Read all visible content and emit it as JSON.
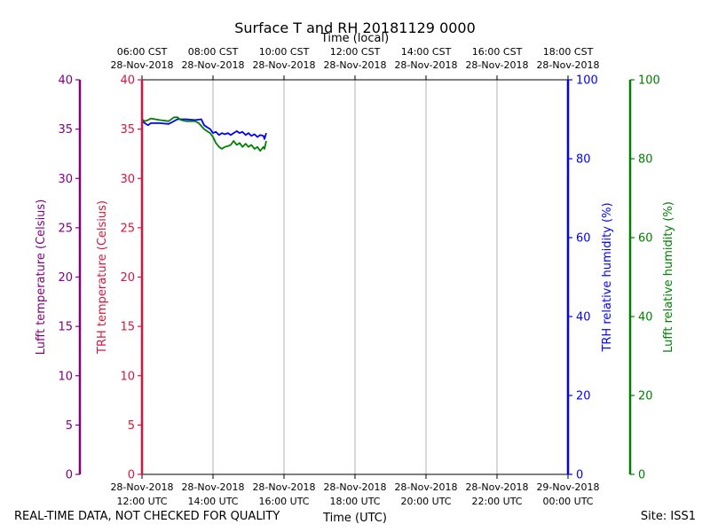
{
  "chart_data": {
    "type": "line",
    "title": "Surface T and RH 20181129 0000",
    "x_bottom": {
      "label": "Time (UTC)",
      "ticks": [
        {
          "date": "28-Nov-2018",
          "time": "12:00 UTC"
        },
        {
          "date": "28-Nov-2018",
          "time": "14:00 UTC"
        },
        {
          "date": "28-Nov-2018",
          "time": "16:00 UTC"
        },
        {
          "date": "28-Nov-2018",
          "time": "18:00 UTC"
        },
        {
          "date": "28-Nov-2018",
          "time": "20:00 UTC"
        },
        {
          "date": "28-Nov-2018",
          "time": "22:00 UTC"
        },
        {
          "date": "29-Nov-2018",
          "time": "00:00 UTC"
        }
      ],
      "range_hours_utc": [
        12,
        24
      ]
    },
    "x_top": {
      "label": "Time (local)",
      "ticks": [
        {
          "time": "06:00 CST",
          "date": "28-Nov-2018"
        },
        {
          "time": "08:00 CST",
          "date": "28-Nov-2018"
        },
        {
          "time": "10:00 CST",
          "date": "28-Nov-2018"
        },
        {
          "time": "12:00 CST",
          "date": "28-Nov-2018"
        },
        {
          "time": "14:00 CST",
          "date": "28-Nov-2018"
        },
        {
          "time": "16:00 CST",
          "date": "28-Nov-2018"
        },
        {
          "time": "18:00 CST",
          "date": "28-Nov-2018"
        }
      ]
    },
    "grid_x": true,
    "axes": {
      "lufft_temp": {
        "label": "Lufft temperature (Celsius)",
        "range": [
          0,
          40
        ],
        "ticks": [
          "0",
          "5",
          "10",
          "15",
          "20",
          "25",
          "30",
          "35",
          "40"
        ],
        "color": "#800080"
      },
      "trh_temp": {
        "label": "TRH temperature (Celsius)",
        "range": [
          0,
          40
        ],
        "ticks": [
          "0",
          "5",
          "10",
          "15",
          "20",
          "25",
          "30",
          "35",
          "40"
        ],
        "color": "#dc143c"
      },
      "trh_rh": {
        "label": "TRH relative humidity (%)",
        "range": [
          0,
          100
        ],
        "ticks": [
          "0",
          "20",
          "40",
          "60",
          "80",
          "100"
        ],
        "color": "#0000ff"
      },
      "lufft_rh": {
        "label": "Lufft relative humidity (%)",
        "range": [
          0,
          100
        ],
        "ticks": [
          "0",
          "20",
          "40",
          "60",
          "80",
          "100"
        ],
        "color": "#008000"
      }
    },
    "series": [
      {
        "axis": "trh_rh",
        "color": "#0000ff",
        "x_hours_utc": [
          12.0,
          12.08,
          12.17,
          12.25,
          12.5,
          12.75,
          13.0,
          13.25,
          13.5,
          13.67,
          13.75,
          13.83,
          13.92,
          14.0,
          14.08,
          14.17,
          14.25,
          14.33,
          14.42,
          14.5,
          14.58,
          14.67,
          14.75,
          14.83,
          14.92,
          15.0,
          15.08,
          15.17,
          15.25,
          15.33,
          15.42,
          15.45,
          15.5
        ],
        "values": [
          89.5,
          89.0,
          88.5,
          89.0,
          89.0,
          88.8,
          90.0,
          90.0,
          89.8,
          90.0,
          88.5,
          88.0,
          87.5,
          86.5,
          86.8,
          86.0,
          86.5,
          86.2,
          86.5,
          86.0,
          86.5,
          87.0,
          86.5,
          86.8,
          86.0,
          86.5,
          85.8,
          86.2,
          85.5,
          86.0,
          85.8,
          85.0,
          86.5
        ]
      },
      {
        "axis": "lufft_rh",
        "color": "#008000",
        "x_hours_utc": [
          12.0,
          12.08,
          12.17,
          12.25,
          12.5,
          12.75,
          12.9,
          13.0,
          13.1,
          13.25,
          13.5,
          13.6,
          13.75,
          13.83,
          13.92,
          14.0,
          14.08,
          14.17,
          14.25,
          14.33,
          14.42,
          14.5,
          14.58,
          14.67,
          14.75,
          14.83,
          14.92,
          15.0,
          15.08,
          15.17,
          15.25,
          15.33,
          15.42,
          15.45,
          15.5
        ],
        "values": [
          90.0,
          89.5,
          89.8,
          90.2,
          89.8,
          89.5,
          90.5,
          90.5,
          89.8,
          89.5,
          89.5,
          89.0,
          87.5,
          87.0,
          86.5,
          85.5,
          84.0,
          83.0,
          82.5,
          83.0,
          83.2,
          83.5,
          84.5,
          83.5,
          84.0,
          83.0,
          83.8,
          83.0,
          83.5,
          82.5,
          83.0,
          82.0,
          83.0,
          82.5,
          84.5
        ]
      }
    ]
  },
  "footer": {
    "note": "REAL-TIME DATA, NOT CHECKED FOR QUALITY",
    "site": "Site: ISS1"
  }
}
